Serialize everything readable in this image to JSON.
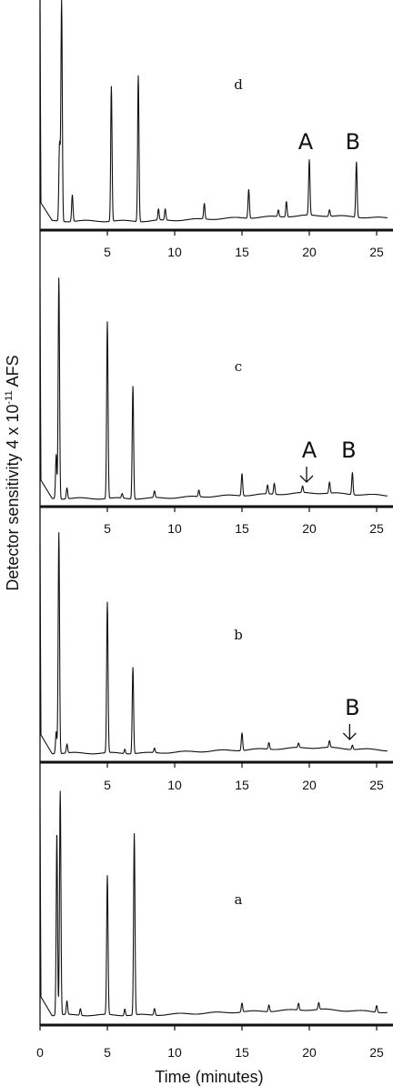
{
  "figure": {
    "ylabel": "Detector sensitivity 4 x 10",
    "ylabel_exp": "-11",
    "ylabel_unit": " AFS",
    "xlabel": "Time (minutes)"
  },
  "chart_data": [
    {
      "type": "line",
      "panel": "d",
      "xlim": [
        0,
        26
      ],
      "xticks": [
        5,
        10,
        15,
        20,
        25
      ],
      "tick_labels": [
        "5",
        "10",
        "15",
        "20",
        "25"
      ],
      "annotations": [
        {
          "text": "A",
          "x": 20.0,
          "arrow": false
        },
        {
          "text": "B",
          "x": 23.5,
          "arrow": false
        }
      ],
      "peaks": [
        {
          "rt": 1.6,
          "h": 1.0
        },
        {
          "rt": 1.45,
          "h": 0.35
        },
        {
          "rt": 2.4,
          "h": 0.12
        },
        {
          "rt": 5.3,
          "h": 0.61
        },
        {
          "rt": 7.3,
          "h": 0.66
        },
        {
          "rt": 8.8,
          "h": 0.05
        },
        {
          "rt": 9.3,
          "h": 0.05
        },
        {
          "rt": 12.2,
          "h": 0.07
        },
        {
          "rt": 15.5,
          "h": 0.13
        },
        {
          "rt": 17.7,
          "h": 0.03
        },
        {
          "rt": 18.3,
          "h": 0.07
        },
        {
          "rt": 20.0,
          "h": 0.25
        },
        {
          "rt": 21.5,
          "h": 0.03
        },
        {
          "rt": 23.5,
          "h": 0.25
        }
      ]
    },
    {
      "type": "line",
      "panel": "c",
      "xlim": [
        0,
        26
      ],
      "xticks": [
        5,
        10,
        15,
        20,
        25
      ],
      "tick_labels": [
        "5",
        "10",
        "15",
        "20",
        "25"
      ],
      "annotations": [
        {
          "text": "A",
          "x": 20.0,
          "arrow": true
        },
        {
          "text": "B",
          "x": 23.2,
          "arrow": false
        }
      ],
      "peaks": [
        {
          "rt": 1.4,
          "h": 1.0
        },
        {
          "rt": 1.2,
          "h": 0.2
        },
        {
          "rt": 2.0,
          "h": 0.05
        },
        {
          "rt": 5.0,
          "h": 0.8
        },
        {
          "rt": 6.1,
          "h": 0.02
        },
        {
          "rt": 6.9,
          "h": 0.51
        },
        {
          "rt": 8.5,
          "h": 0.03
        },
        {
          "rt": 11.8,
          "h": 0.03
        },
        {
          "rt": 15.0,
          "h": 0.1
        },
        {
          "rt": 16.9,
          "h": 0.04
        },
        {
          "rt": 17.4,
          "h": 0.05
        },
        {
          "rt": 19.5,
          "h": 0.03
        },
        {
          "rt": 21.5,
          "h": 0.05
        },
        {
          "rt": 23.2,
          "h": 0.1
        }
      ]
    },
    {
      "type": "line",
      "panel": "b",
      "xlim": [
        0,
        26
      ],
      "xticks": [
        5,
        10,
        15,
        20,
        25
      ],
      "tick_labels": [
        "5",
        "10",
        "15",
        "20",
        "25"
      ],
      "annotations": [
        {
          "text": "B",
          "x": 23.2,
          "arrow": true
        }
      ],
      "peaks": [
        {
          "rt": 1.4,
          "h": 1.0
        },
        {
          "rt": 1.2,
          "h": 0.1
        },
        {
          "rt": 2.0,
          "h": 0.04
        },
        {
          "rt": 5.0,
          "h": 0.68
        },
        {
          "rt": 6.3,
          "h": 0.02
        },
        {
          "rt": 6.9,
          "h": 0.39
        },
        {
          "rt": 8.5,
          "h": 0.02
        },
        {
          "rt": 15.0,
          "h": 0.08
        },
        {
          "rt": 17.0,
          "h": 0.03
        },
        {
          "rt": 19.2,
          "h": 0.02
        },
        {
          "rt": 21.5,
          "h": 0.03
        },
        {
          "rt": 23.2,
          "h": 0.02
        }
      ]
    },
    {
      "type": "line",
      "panel": "a",
      "xlim": [
        0,
        26
      ],
      "xticks": [
        0,
        5,
        10,
        15,
        20,
        25
      ],
      "tick_labels": [
        "0",
        "5",
        "10",
        "15",
        "20",
        "25"
      ],
      "annotations": [],
      "peaks": [
        {
          "rt": 1.5,
          "h": 1.0
        },
        {
          "rt": 1.25,
          "h": 0.82
        },
        {
          "rt": 2.0,
          "h": 0.06
        },
        {
          "rt": 3.0,
          "h": 0.03
        },
        {
          "rt": 5.0,
          "h": 0.62
        },
        {
          "rt": 6.3,
          "h": 0.03
        },
        {
          "rt": 7.0,
          "h": 0.81
        },
        {
          "rt": 8.5,
          "h": 0.03
        },
        {
          "rt": 15.0,
          "h": 0.04
        },
        {
          "rt": 17.0,
          "h": 0.03
        },
        {
          "rt": 19.2,
          "h": 0.03
        },
        {
          "rt": 20.7,
          "h": 0.03
        },
        {
          "rt": 25.0,
          "h": 0.03
        }
      ]
    }
  ]
}
